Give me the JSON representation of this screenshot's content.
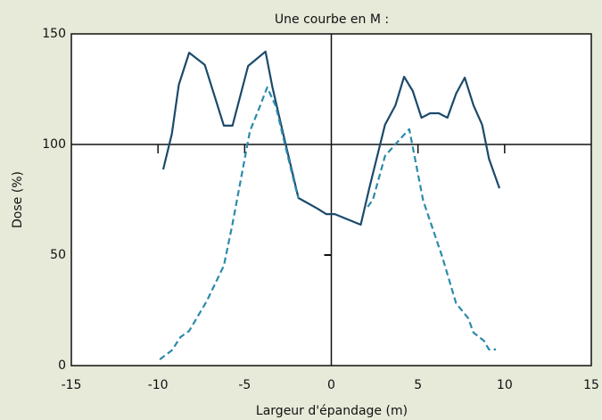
{
  "chart_data": {
    "type": "line",
    "title": "Une courbe en M :",
    "xlabel": "Largeur d'épandage (m)",
    "ylabel": "Dose (%)",
    "xlim": [
      -15,
      15
    ],
    "xticks": [
      -15,
      -10,
      -5,
      0,
      5,
      10,
      15
    ],
    "ylim": [
      0,
      150
    ],
    "yticks": [
      0,
      50,
      100,
      150
    ],
    "reference_lines": {
      "x": 0,
      "y": 100
    },
    "series": [
      {
        "color": "#1b4a6b",
        "style": "solid",
        "x": [
          -9.7,
          -9.2,
          -8.8,
          -8.2,
          -7.3,
          -6.2,
          -5.7,
          -4.8,
          -3.8,
          -3.4,
          -2.8,
          -1.9,
          -0.8,
          -0.3,
          0.2,
          1.7,
          2.2,
          3.1,
          3.7,
          4.2,
          4.7,
          5.2,
          5.7,
          6.2,
          6.7,
          7.2,
          7.7,
          8.2,
          8.7,
          9.1,
          9.7
        ],
        "values": [
          88.7,
          104.8,
          127,
          141.5,
          136,
          108.5,
          108.5,
          135.5,
          142,
          126,
          105.6,
          75.8,
          71,
          68.5,
          68.5,
          63.7,
          80.6,
          108.9,
          117.7,
          130.6,
          124.2,
          112.1,
          114.1,
          114.1,
          112.1,
          123,
          130.2,
          117.7,
          108.9,
          93.5,
          80.2
        ]
      },
      {
        "color": "#2a8aab",
        "style": "dashed",
        "x": [
          -9.9,
          -9.2,
          -8.7,
          -8.2,
          -7.2,
          -6.2,
          -5.7,
          -4.7,
          -4.2,
          -3.7,
          -3.2,
          -2.8,
          -2.1,
          -1.9,
          0,
          2.1,
          2.4,
          3.1,
          4.1,
          4.5,
          5.3,
          6.4,
          7.2,
          7.9,
          8.2,
          8.8,
          9.1,
          9.5
        ],
        "values": [
          2.8,
          6.9,
          12.9,
          15.7,
          29,
          45.2,
          64.1,
          106,
          115.7,
          125.8,
          117.3,
          104,
          81.5,
          75.8,
          null,
          71.8,
          75,
          94.8,
          103.6,
          106.9,
          74.6,
          49.2,
          28.2,
          21.4,
          14.9,
          11.3,
          7.3,
          7.3
        ]
      }
    ]
  }
}
